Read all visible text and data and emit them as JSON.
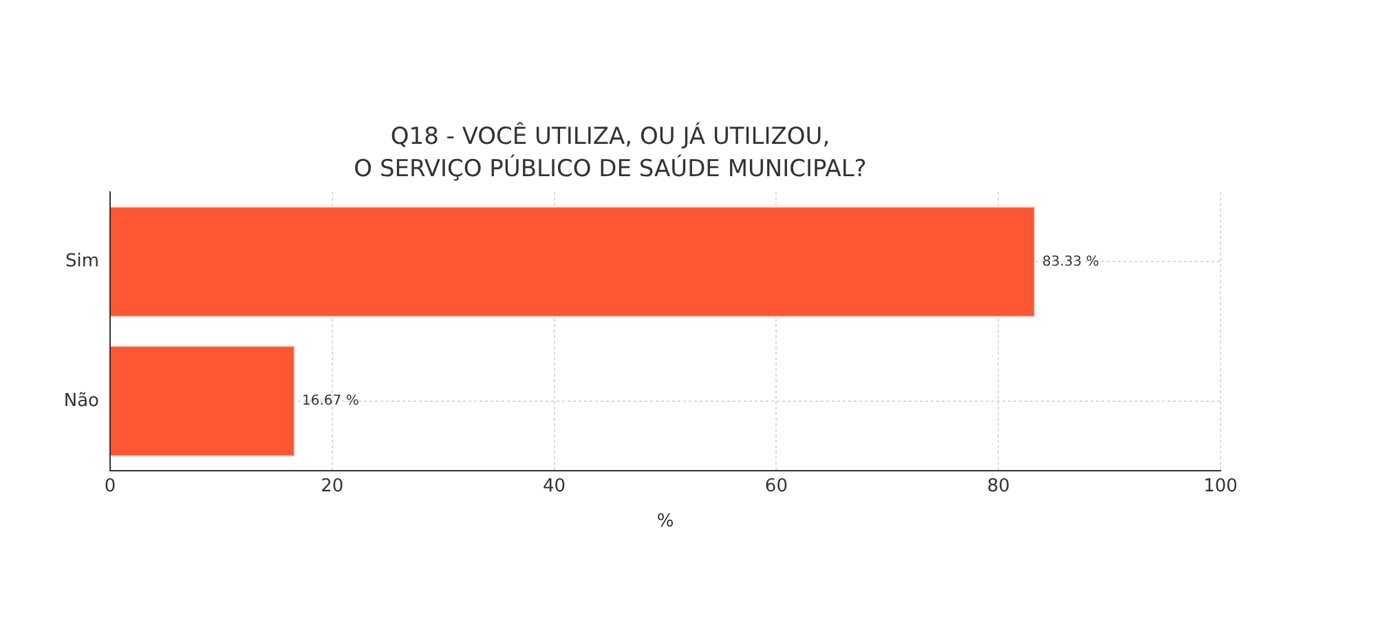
{
  "chart_data": {
    "type": "bar",
    "orientation": "horizontal",
    "title": "Q18 - VOCÊ UTILIZA, OU JÁ UTILIZOU,\nO SERVIÇO PÚBLICO DE SAÚDE MUNICIPAL?",
    "xlabel": "%",
    "categories": [
      "Sim",
      "Não"
    ],
    "values": [
      83.33,
      16.67
    ],
    "value_labels": [
      "83.33 %",
      "16.67 %"
    ],
    "color": "#ff5733",
    "xlim": [
      0,
      100
    ],
    "xticks": [
      0,
      20,
      40,
      60,
      80,
      100
    ],
    "grid": true
  }
}
